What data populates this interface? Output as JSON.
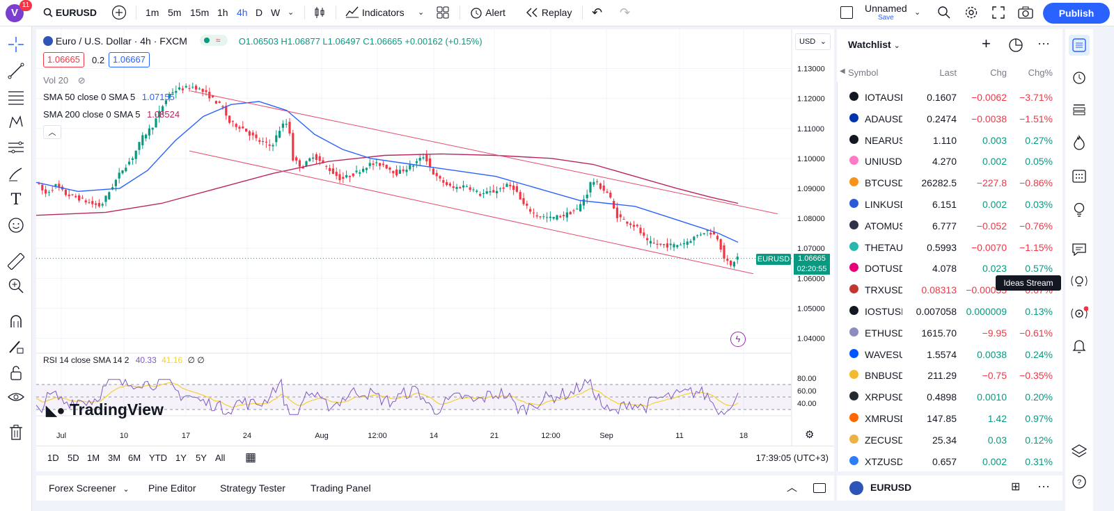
{
  "topbar": {
    "notification_count": "11",
    "symbol": "EURUSD",
    "intervals": [
      "1m",
      "5m",
      "15m",
      "1h",
      "4h",
      "D",
      "W"
    ],
    "active_interval": "4h",
    "indicators_label": "Indicators",
    "alert_label": "Alert",
    "replay_label": "Replay",
    "layout_name": "Unnamed",
    "layout_save": "Save",
    "publish_label": "Publish"
  },
  "chart": {
    "title": "Euro / U.S. Dollar · 4h · FXCM",
    "ohlc": "O1.06503  H1.06877  L1.06497  C1.06665  +0.00162 (+0.15%)",
    "bid": "1.06665",
    "spread": "0.2",
    "ask": "1.06667",
    "vol_label": "Vol 20",
    "sma50_label": "SMA 50 close 0 SMA 5",
    "sma50_value": "1.07155",
    "sma200_label": "SMA 200 close 0 SMA 5",
    "sma200_value": "1.08524",
    "currency": "USD",
    "symbol_tag": "EURUSD",
    "last_price": "1.06665",
    "countdown": "02:20:55",
    "rsi_label": "RSI 14 close SMA 14 2",
    "rsi_value": "40.33",
    "rsi_sma_value": "41.16",
    "rsi_extra": "∅ ∅",
    "watermark": "TradingView",
    "colors": {
      "up": "#089981",
      "down": "#f23645",
      "sma50": "#2962ff",
      "sma200": "#b8265f",
      "channel": "#e84a6a",
      "rsi": "#7e57c2",
      "rsi_sma": "#f5d033"
    }
  },
  "chart_data": {
    "type": "candlestick",
    "price_axis": [
      "1.13000",
      "1.12000",
      "1.11000",
      "1.10000",
      "1.09000",
      "1.08000",
      "1.07000",
      "1.06000",
      "1.05000",
      "1.04000"
    ],
    "rsi_axis": [
      "80.00",
      "60.00",
      "40.00"
    ],
    "time_axis": [
      "Jul",
      "10",
      "17",
      "24",
      "Aug",
      "12:00",
      "14",
      "21",
      "12:00",
      "Sep",
      "11",
      "18"
    ],
    "ylim": [
      1.035,
      1.135
    ]
  },
  "bottom_chart": {
    "ranges": [
      "1D",
      "5D",
      "1M",
      "3M",
      "6M",
      "YTD",
      "1Y",
      "5Y",
      "All"
    ],
    "clock": "17:39:05 (UTC+3)"
  },
  "bottombar": {
    "tabs": [
      "Forex Screener",
      "Pine Editor",
      "Strategy Tester",
      "Trading Panel"
    ]
  },
  "watchlist": {
    "title": "Watchlist",
    "columns": [
      "Symbol",
      "Last",
      "Chg",
      "Chg%"
    ],
    "rows": [
      {
        "symbol": "IOTAUSD",
        "last": "0.1607",
        "chg": "−0.0062",
        "pct": "−3.71%",
        "dir": "neg",
        "icon": "#131722"
      },
      {
        "symbol": "ADAUSD",
        "last": "0.2474",
        "chg": "−0.0038",
        "pct": "−1.51%",
        "dir": "neg",
        "icon": "#0033ad"
      },
      {
        "symbol": "NEARUSD",
        "last": "1.110",
        "chg": "0.003",
        "pct": "0.27%",
        "dir": "pos",
        "icon": "#131722"
      },
      {
        "symbol": "UNIUSDT",
        "last": "4.270",
        "chg": "0.002",
        "pct": "0.05%",
        "dir": "pos",
        "icon": "#ff79c6"
      },
      {
        "symbol": "BTCUSDT",
        "last": "26282.5",
        "chg": "−227.8",
        "pct": "−0.86%",
        "dir": "neg",
        "icon": "#f7931a"
      },
      {
        "symbol": "LINKUSD",
        "last": "6.151",
        "chg": "0.002",
        "pct": "0.03%",
        "dir": "pos",
        "icon": "#2a5ada"
      },
      {
        "symbol": "ATOMUSD",
        "last": "6.777",
        "chg": "−0.052",
        "pct": "−0.76%",
        "dir": "neg",
        "icon": "#2e3148"
      },
      {
        "symbol": "THETAUSD",
        "last": "0.5993",
        "chg": "−0.0070",
        "pct": "−1.15%",
        "dir": "neg",
        "icon": "#29b6af"
      },
      {
        "symbol": "DOTUSD",
        "last": "4.078",
        "chg": "0.023",
        "pct": "0.57%",
        "dir": "pos",
        "icon": "#e6007a"
      },
      {
        "symbol": "TRXUSDT",
        "last": "0.08313",
        "chg": "−0.00055",
        "pct": "−0.67%",
        "dir": "neg",
        "icon": "#c23631"
      },
      {
        "symbol": "IOSTUSD",
        "last": "0.007058",
        "chg": "0.000009",
        "pct": "0.13%",
        "dir": "pos",
        "icon": "#131722"
      },
      {
        "symbol": "ETHUSD",
        "last": "1615.70",
        "chg": "−9.95",
        "pct": "−0.61%",
        "dir": "neg",
        "icon": "#8c8cbe"
      },
      {
        "symbol": "WAVESUSD",
        "last": "1.5574",
        "chg": "0.0038",
        "pct": "0.24%",
        "dir": "pos",
        "icon": "#0155ff"
      },
      {
        "symbol": "BNBUSD",
        "last": "211.29",
        "chg": "−0.75",
        "pct": "−0.35%",
        "dir": "neg",
        "icon": "#f3ba2f"
      },
      {
        "symbol": "XRPUSDT",
        "last": "0.4898",
        "chg": "0.0010",
        "pct": "0.20%",
        "dir": "pos",
        "icon": "#23292f"
      },
      {
        "symbol": "XMRUSD",
        "last": "147.85",
        "chg": "1.42",
        "pct": "0.97%",
        "dir": "pos",
        "icon": "#ff6600"
      },
      {
        "symbol": "ZECUSDT",
        "last": "25.34",
        "chg": "0.03",
        "pct": "0.12%",
        "dir": "pos",
        "icon": "#ecb244"
      },
      {
        "symbol": "XTZUSDT",
        "last": "0.657",
        "chg": "0.002",
        "pct": "0.31%",
        "dir": "pos",
        "icon": "#2c7df7"
      }
    ],
    "footer_symbol": "EURUSD"
  },
  "tooltip": "Ideas Stream"
}
